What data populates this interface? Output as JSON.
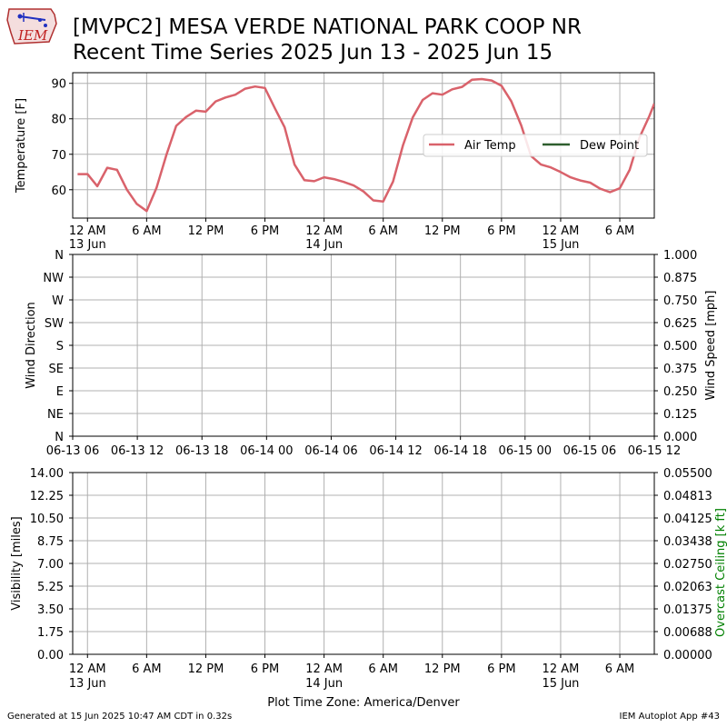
{
  "header": {
    "logo_text": "IEM",
    "title_line1": "[MVPC2] MESA VERDE NATIONAL PARK COOP NR",
    "title_line2": "Recent Time Series 2025 Jun 13 - 2025 Jun 15"
  },
  "footer": {
    "generated": "Generated at 15 Jun 2025 10:47 AM CDT in 0.32s",
    "app": "IEM Autoplot App #43"
  },
  "colors": {
    "air_temp": "#d9626b",
    "dew_point": "#2e5e2e",
    "grid": "#b0b0b0",
    "ceiling_label": "#008000"
  },
  "chart_data": [
    {
      "type": "line",
      "ylabel": "Temperature [F]",
      "ylim": [
        52,
        93
      ],
      "yticks": [
        60,
        70,
        80,
        90
      ],
      "grid": true,
      "legend_placement": "center-right",
      "x_tick_labels": [
        [
          "12 AM",
          "13 Jun"
        ],
        [
          "6 AM",
          ""
        ],
        [
          "12 PM",
          ""
        ],
        [
          "6 PM",
          ""
        ],
        [
          "12 AM",
          "14 Jun"
        ],
        [
          "6 AM",
          ""
        ],
        [
          "12 PM",
          ""
        ],
        [
          "6 PM",
          ""
        ],
        [
          "12 AM",
          "15 Jun"
        ],
        [
          "6 AM",
          ""
        ]
      ],
      "x_tick_hours": [
        0,
        6,
        12,
        18,
        24,
        30,
        36,
        42,
        48,
        54
      ],
      "xlim_hours": [
        -1.5,
        57.5
      ],
      "series": [
        {
          "name": "Air Temp",
          "x_hours": [
            -1,
            0,
            1,
            2,
            3,
            4,
            5,
            6,
            7,
            8,
            9,
            10,
            11,
            12,
            13,
            14,
            15,
            16,
            17,
            18,
            19,
            20,
            21,
            22,
            23,
            24,
            25,
            26,
            27,
            28,
            29,
            30,
            31,
            32,
            33,
            34,
            35,
            36,
            37,
            38,
            39,
            40,
            41,
            42,
            43,
            44,
            45,
            46,
            47,
            48,
            49,
            50,
            51,
            52,
            53,
            54,
            55,
            56,
            57,
            57.5
          ],
          "values": [
            64.4,
            64.4,
            61.0,
            66.2,
            65.6,
            60.0,
            56.0,
            54.0,
            60.5,
            69.8,
            78.0,
            80.5,
            82.3,
            82.0,
            84.9,
            86.0,
            86.8,
            88.5,
            89.1,
            88.7,
            83.0,
            77.6,
            67.1,
            62.7,
            62.4,
            63.5,
            63.0,
            62.2,
            61.2,
            59.5,
            57.0,
            56.7,
            62.3,
            72.5,
            80.4,
            85.3,
            87.2,
            86.8,
            88.3,
            89.0,
            91.0,
            91.2,
            90.8,
            89.3,
            84.9,
            78.1,
            69.5,
            67.1,
            66.3,
            65.0,
            63.5,
            62.6,
            62.0,
            60.3,
            59.3,
            60.4,
            65.6,
            74.7,
            80.8,
            84.3
          ]
        },
        {
          "name": "Dew Point",
          "x_hours": [],
          "values": []
        }
      ]
    },
    {
      "type": "line",
      "ylabel": "Wind Direction",
      "ylabel_right": "Wind Speed [mph]",
      "yticks_left": [
        "N",
        "NE",
        "E",
        "SE",
        "S",
        "SW",
        "W",
        "NW",
        "N"
      ],
      "yticks_right": [
        "0.000",
        "0.125",
        "0.250",
        "0.375",
        "0.500",
        "0.625",
        "0.750",
        "0.875",
        "1.000"
      ],
      "ylim_right": [
        0,
        1
      ],
      "x_tick_labels": [
        "06-13 06",
        "06-13 12",
        "06-13 18",
        "06-14 00",
        "06-14 06",
        "06-14 12",
        "06-14 18",
        "06-15 00",
        "06-15 06",
        "06-15 12"
      ],
      "grid": true,
      "series": []
    },
    {
      "type": "line",
      "ylabel": "Visibility [miles]",
      "ylabel_right": "Overcast Ceiling [k ft]",
      "yticks_left": [
        "0.00",
        "1.75",
        "3.50",
        "5.25",
        "7.00",
        "8.75",
        "10.50",
        "12.25",
        "14.00"
      ],
      "yticks_right": [
        "0.00000",
        "0.00688",
        "0.01375",
        "0.02063",
        "0.02750",
        "0.03438",
        "0.04125",
        "0.04813",
        "0.05500"
      ],
      "ylim": [
        0,
        14
      ],
      "ylim_right": [
        0,
        0.055
      ],
      "x_tick_labels": [
        [
          "12 AM",
          "13 Jun"
        ],
        [
          "6 AM",
          ""
        ],
        [
          "12 PM",
          ""
        ],
        [
          "6 PM",
          ""
        ],
        [
          "12 AM",
          "14 Jun"
        ],
        [
          "6 AM",
          ""
        ],
        [
          "12 PM",
          ""
        ],
        [
          "6 PM",
          ""
        ],
        [
          "12 AM",
          "15 Jun"
        ],
        [
          "6 AM",
          ""
        ]
      ],
      "xlabel": "Plot Time Zone: America/Denver",
      "grid": true,
      "series": []
    }
  ]
}
